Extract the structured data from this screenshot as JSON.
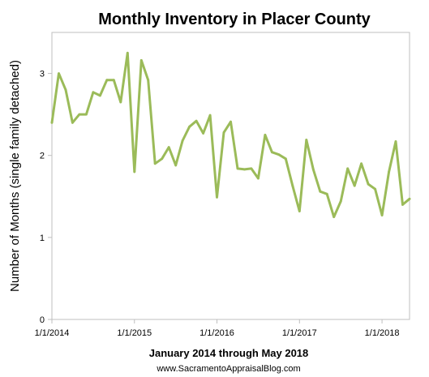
{
  "chart_data": {
    "type": "line",
    "title": "Monthly Inventory in Placer County",
    "xlabel": "January 2014 through May 2018",
    "ylabel": "Number of Months (single family detached)",
    "footer": "www.SacramentoAppraisalBlog.com",
    "ylim": [
      0,
      3.5
    ],
    "yticks": [
      "0",
      "1",
      "2",
      "3"
    ],
    "xticks": [
      "1/1/2014",
      "1/1/2015",
      "1/1/2016",
      "1/1/2017",
      "1/1/2018"
    ],
    "grid": false,
    "legend": "none",
    "series": [
      {
        "color": "#9bbb59",
        "x": [
          "2014-01",
          "2014-02",
          "2014-03",
          "2014-04",
          "2014-05",
          "2014-06",
          "2014-07",
          "2014-08",
          "2014-09",
          "2014-10",
          "2014-11",
          "2014-12",
          "2015-01",
          "2015-02",
          "2015-03",
          "2015-04",
          "2015-05",
          "2015-06",
          "2015-07",
          "2015-08",
          "2015-09",
          "2015-10",
          "2015-11",
          "2015-12",
          "2016-01",
          "2016-02",
          "2016-03",
          "2016-04",
          "2016-05",
          "2016-06",
          "2016-07",
          "2016-08",
          "2016-09",
          "2016-10",
          "2016-11",
          "2016-12",
          "2017-01",
          "2017-02",
          "2017-03",
          "2017-04",
          "2017-05",
          "2017-06",
          "2017-07",
          "2017-08",
          "2017-09",
          "2017-10",
          "2017-11",
          "2017-12",
          "2018-01",
          "2018-02",
          "2018-03",
          "2018-04",
          "2018-05"
        ],
        "values": [
          2.4,
          3.0,
          2.8,
          2.4,
          2.5,
          2.5,
          2.77,
          2.73,
          2.92,
          2.92,
          2.65,
          3.25,
          1.8,
          3.16,
          2.92,
          1.9,
          1.96,
          2.1,
          1.88,
          2.18,
          2.35,
          2.42,
          2.27,
          2.49,
          1.49,
          2.28,
          2.41,
          1.84,
          1.83,
          1.84,
          1.72,
          2.25,
          2.04,
          2.01,
          1.96,
          1.63,
          1.32,
          2.19,
          1.83,
          1.56,
          1.53,
          1.25,
          1.44,
          1.84,
          1.63,
          1.9,
          1.65,
          1.59,
          1.27,
          1.8,
          2.17,
          1.4,
          1.47
        ]
      }
    ]
  }
}
